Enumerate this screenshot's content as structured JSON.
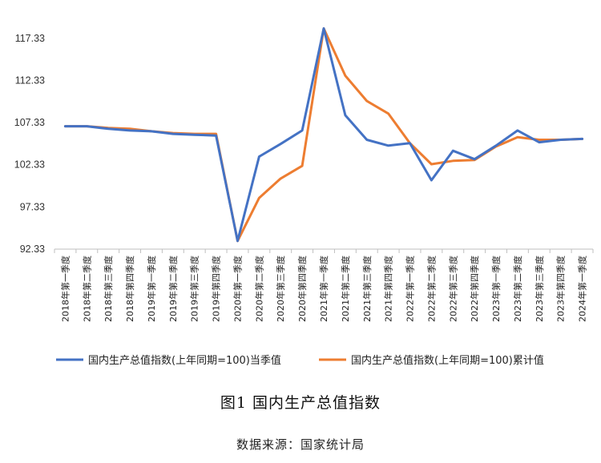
{
  "caption": {
    "title": "图1  国内生产总值指数",
    "source": "数据来源：国家统计局"
  },
  "chart_data": {
    "type": "line",
    "y_ticks": [
      "92.33",
      "97.33",
      "102.33",
      "107.33",
      "112.33",
      "117.33"
    ],
    "ylim": [
      92.33,
      119.5
    ],
    "grid": false,
    "legend_position": "bottom",
    "categories": [
      "2018年第一季度",
      "2018年第二季度",
      "2018年第三季度",
      "2018年第四季度",
      "2019年第一季度",
      "2019年第二季度",
      "2019年第三季度",
      "2019年第四季度",
      "2020年第一季度",
      "2020年第二季度",
      "2020年第三季度",
      "2020年第四季度",
      "2021年第一季度",
      "2021年第二季度",
      "2021年第三季度",
      "2021年第四季度",
      "2022年第一季度",
      "2022年第二季度",
      "2022年第三季度",
      "2022年第四季度",
      "2023年第一季度",
      "2023年第二季度",
      "2023年第三季度",
      "2023年第四季度",
      "2024年第一季度"
    ],
    "series": [
      {
        "name": "国内生产总值指数(上年同期=100)当季值",
        "color": "#4472c4",
        "values": [
          106.9,
          106.9,
          106.6,
          106.4,
          106.3,
          106.0,
          105.9,
          105.8,
          93.3,
          103.3,
          104.8,
          106.4,
          118.5,
          108.2,
          105.3,
          104.6,
          104.9,
          100.5,
          104.0,
          103.0,
          104.6,
          106.4,
          105.0,
          105.3,
          105.4
        ]
      },
      {
        "name": "国内生产总值指数(上年同期=100)累计值",
        "color": "#ed7d31",
        "values": [
          106.9,
          106.9,
          106.7,
          106.6,
          106.3,
          106.1,
          106.0,
          106.0,
          93.3,
          98.4,
          100.7,
          102.2,
          118.5,
          112.9,
          109.9,
          108.4,
          104.9,
          102.4,
          102.8,
          102.9,
          104.5,
          105.6,
          105.3,
          105.3,
          105.4
        ]
      }
    ]
  }
}
